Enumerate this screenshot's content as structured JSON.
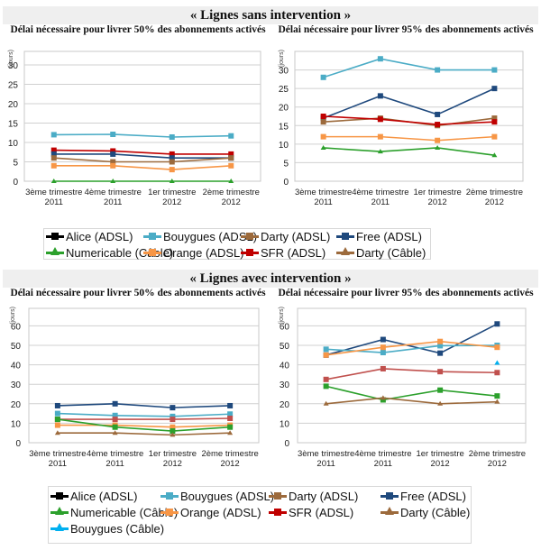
{
  "sections": [
    {
      "title": "« Lignes sans intervention »"
    },
    {
      "title": "« Lignes avec intervention »"
    }
  ],
  "chart_data": [
    {
      "id": "sans-50",
      "type": "line",
      "title": "Délai nécessaire pour livrer 50% des abonnements activés",
      "ylabel": "(jours)",
      "xlabel": "",
      "ylim": [
        0,
        30
      ],
      "yticks": [
        0,
        5,
        10,
        15,
        20,
        25,
        30
      ],
      "grid": true,
      "categories": [
        [
          "3ème trimestre",
          "2011"
        ],
        [
          "4ème trimestre",
          "2011"
        ],
        [
          "1er trimestre",
          "2012"
        ],
        [
          "2ème trimestre",
          "2012"
        ]
      ],
      "series": [
        {
          "name": "Bouygues (ADSL)",
          "color": "#4bacc6",
          "marker": "square",
          "values": [
            12,
            12.1,
            11.4,
            11.7
          ]
        },
        {
          "name": "SFR (ADSL)",
          "color": "#c00000",
          "marker": "square",
          "values": [
            8,
            7.8,
            7,
            7
          ]
        },
        {
          "name": "Free (ADSL)",
          "color": "#1f497d",
          "marker": "square",
          "values": [
            7,
            7,
            6,
            6
          ]
        },
        {
          "name": "Darty (ADSL)",
          "color": "#9c6a3c",
          "marker": "square",
          "values": [
            6,
            5,
            5,
            6
          ]
        },
        {
          "name": "Orange (ADSL)",
          "color": "#f79646",
          "marker": "square",
          "values": [
            4,
            4,
            3,
            4
          ]
        },
        {
          "name": "Numericable (Câble)",
          "color": "#2ca02c",
          "marker": "triangle",
          "values": [
            0,
            0,
            0,
            0
          ]
        }
      ]
    },
    {
      "id": "sans-95",
      "type": "line",
      "title": "Délai nécessaire pour livrer 95% des abonnements activés",
      "ylabel": "(jours)",
      "xlabel": "",
      "ylim": [
        0,
        35
      ],
      "yticks": [
        0,
        5,
        10,
        15,
        20,
        25,
        30
      ],
      "grid": true,
      "categories": [
        [
          "3ème trimestre",
          "2011"
        ],
        [
          "4ème trimestre",
          "2011"
        ],
        [
          "1er trimestre",
          "2012"
        ],
        [
          "2ème trimestre",
          "2012"
        ]
      ],
      "series": [
        {
          "name": "Bouygues (ADSL)",
          "color": "#4bacc6",
          "marker": "square",
          "values": [
            28,
            33,
            30,
            30
          ]
        },
        {
          "name": "Free (ADSL)",
          "color": "#1f497d",
          "marker": "square",
          "values": [
            17,
            23,
            18,
            25
          ]
        },
        {
          "name": "Darty (ADSL)",
          "color": "#9c6a3c",
          "marker": "square",
          "values": [
            16,
            17,
            15,
            17
          ]
        },
        {
          "name": "SFR (ADSL)",
          "color": "#c00000",
          "marker": "square",
          "values": [
            17.5,
            16.7,
            15.3,
            16
          ]
        },
        {
          "name": "Orange (ADSL)",
          "color": "#f79646",
          "marker": "square",
          "values": [
            12,
            12,
            11,
            12
          ]
        },
        {
          "name": "Numericable (Câble)",
          "color": "#2ca02c",
          "marker": "triangle",
          "values": [
            9,
            8,
            9,
            7
          ]
        }
      ]
    },
    {
      "id": "avec-50",
      "type": "line",
      "title": "Délai nécessaire pour livrer 50% des abonnements activés",
      "ylabel": "(jours)",
      "xlabel": "",
      "ylim": [
        0,
        70
      ],
      "yticks": [
        0,
        10,
        20,
        30,
        40,
        50,
        60
      ],
      "grid": true,
      "categories": [
        [
          "3ème trimestre",
          "2011"
        ],
        [
          "4ème trimestre",
          "2011"
        ],
        [
          "1er trimestre",
          "2012"
        ],
        [
          "2ème trimestre",
          "2012"
        ]
      ],
      "series": [
        {
          "name": "Free (ADSL)",
          "color": "#1f497d",
          "marker": "square",
          "values": [
            19,
            20,
            18,
            19
          ]
        },
        {
          "name": "Bouygues (ADSL)",
          "color": "#4bacc6",
          "marker": "square",
          "values": [
            15,
            14,
            13.5,
            14.7
          ]
        },
        {
          "name": "SFR (ADSL)",
          "color": "#c0504d",
          "marker": "square",
          "values": [
            12,
            12,
            12,
            12.5
          ]
        },
        {
          "name": "Orange (ADSL)",
          "color": "#f79646",
          "marker": "square",
          "values": [
            9,
            9,
            8,
            9
          ]
        },
        {
          "name": "Numericable (Câble)",
          "color": "#2ca02c",
          "marker": "square",
          "values": [
            12,
            8,
            6,
            8
          ]
        },
        {
          "name": "Darty (Câble)",
          "color": "#9c6a3c",
          "marker": "triangle",
          "values": [
            5,
            5,
            4,
            5
          ]
        }
      ]
    },
    {
      "id": "avec-95",
      "type": "line",
      "title": "Délai nécessaire pour livrer 95% des abonnements activés",
      "ylabel": "(jours)",
      "xlabel": "",
      "ylim": [
        0,
        70
      ],
      "yticks": [
        0,
        10,
        20,
        30,
        40,
        50,
        60
      ],
      "grid": true,
      "categories": [
        [
          "3ème trimestre",
          "2011"
        ],
        [
          "4ème trimestre",
          "2011"
        ],
        [
          "1er trimestre",
          "2012"
        ],
        [
          "2ème trimestre",
          "2012"
        ]
      ],
      "series": [
        {
          "name": "Free (ADSL)",
          "color": "#1f497d",
          "marker": "square",
          "values": [
            45,
            53,
            46,
            61
          ]
        },
        {
          "name": "Bouygues (ADSL)",
          "color": "#4bacc6",
          "marker": "square",
          "values": [
            48,
            46.3,
            49.8,
            50
          ]
        },
        {
          "name": "Orange (ADSL)",
          "color": "#f79646",
          "marker": "square",
          "values": [
            45,
            49,
            52,
            49
          ]
        },
        {
          "name": "SFR (ADSL)",
          "color": "#c0504d",
          "marker": "square",
          "values": [
            32.5,
            38,
            36.5,
            36
          ]
        },
        {
          "name": "Numericable (Câble)",
          "color": "#2ca02c",
          "marker": "square",
          "values": [
            29,
            22,
            27,
            24
          ]
        },
        {
          "name": "Darty (Câble)",
          "color": "#9c6a3c",
          "marker": "triangle",
          "values": [
            20,
            23,
            20,
            21
          ]
        },
        {
          "name": "Bouygues (Câble)",
          "color": "#00b0f0",
          "marker": "triangle",
          "values": [
            null,
            null,
            null,
            41
          ]
        }
      ]
    }
  ],
  "legends": [
    {
      "position": "below-top-charts",
      "items": [
        {
          "label": "Alice (ADSL)",
          "color": "#000000",
          "marker": "square"
        },
        {
          "label": "Bouygues (ADSL)",
          "color": "#4bacc6",
          "marker": "square"
        },
        {
          "label": "Darty (ADSL)",
          "color": "#9c6a3c",
          "marker": "square"
        },
        {
          "label": "Free (ADSL)",
          "color": "#1f497d",
          "marker": "square"
        },
        {
          "label": "Numericable (Câble)",
          "color": "#2ca02c",
          "marker": "triangle"
        },
        {
          "label": "Orange (ADSL)",
          "color": "#f79646",
          "marker": "square"
        },
        {
          "label": "SFR (ADSL)",
          "color": "#c00000",
          "marker": "square"
        },
        {
          "label": "Darty (Câble)",
          "color": "#9c6a3c",
          "marker": "triangle"
        }
      ]
    },
    {
      "position": "below-bottom-charts",
      "items": [
        {
          "label": "Alice (ADSL)",
          "color": "#000000",
          "marker": "square"
        },
        {
          "label": "Bouygues (ADSL)",
          "color": "#4bacc6",
          "marker": "square"
        },
        {
          "label": "Darty (ADSL)",
          "color": "#9c6a3c",
          "marker": "square"
        },
        {
          "label": "Free (ADSL)",
          "color": "#1f497d",
          "marker": "square"
        },
        {
          "label": "Numericable (Câble)",
          "color": "#2ca02c",
          "marker": "triangle"
        },
        {
          "label": "Orange (ADSL)",
          "color": "#f79646",
          "marker": "square"
        },
        {
          "label": "SFR (ADSL)",
          "color": "#c00000",
          "marker": "square"
        },
        {
          "label": "Darty (Câble)",
          "color": "#9c6a3c",
          "marker": "triangle"
        },
        {
          "label": "Bouygues (Câble)",
          "color": "#00b0f0",
          "marker": "triangle"
        }
      ]
    }
  ]
}
